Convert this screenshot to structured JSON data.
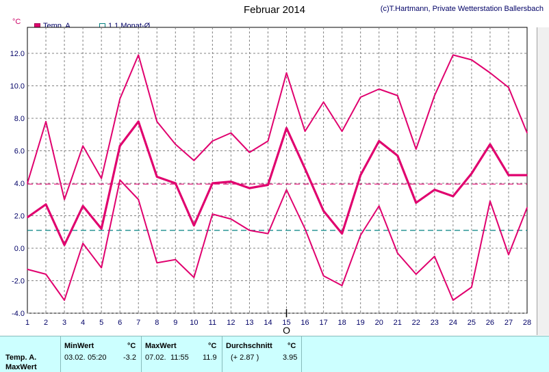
{
  "title": "Februar 2014",
  "credit": "(c)T.Hartmann, Private Wetterstation Ballersbach",
  "unit": "°C",
  "legend": {
    "temp": "Temp. A.",
    "avg": "1.1 Monat-Ø"
  },
  "cursor_label": "O",
  "colors": {
    "series": "#e0006e",
    "monthly_avg": "#008080",
    "grid": "#808080"
  },
  "chart_data": {
    "type": "line",
    "x": [
      1,
      2,
      3,
      4,
      5,
      6,
      7,
      8,
      9,
      10,
      11,
      12,
      13,
      14,
      15,
      16,
      17,
      18,
      19,
      20,
      21,
      22,
      23,
      24,
      25,
      26,
      27,
      28
    ],
    "xlim": [
      1,
      28
    ],
    "ylim": [
      -4.0,
      13.6
    ],
    "yticks": [
      "-4.0",
      "-2.0",
      "0.0",
      "2.0",
      "4.0",
      "6.0",
      "8.0",
      "10.0",
      "12.0"
    ],
    "ytick_values": [
      -4,
      -2,
      0,
      2,
      4,
      6,
      8,
      10,
      12
    ],
    "grid": true,
    "series": [
      {
        "name": "Temp. A.",
        "role": "max",
        "values": [
          4.0,
          7.8,
          3.0,
          6.3,
          4.3,
          9.2,
          11.9,
          7.8,
          6.4,
          5.4,
          6.6,
          7.1,
          5.9,
          6.6,
          10.8,
          7.2,
          9.0,
          7.2,
          9.3,
          9.8,
          9.4,
          6.1,
          9.4,
          11.9,
          11.6,
          10.8,
          9.9,
          7.1
        ]
      },
      {
        "name": "Temp. A.",
        "role": "mean",
        "values": [
          1.9,
          2.7,
          0.2,
          2.6,
          1.2,
          6.3,
          7.8,
          4.4,
          4.0,
          1.4,
          4.0,
          4.1,
          3.7,
          3.9,
          7.4,
          4.9,
          2.3,
          0.9,
          4.5,
          6.6,
          5.7,
          2.8,
          3.6,
          3.2,
          4.6,
          6.4,
          4.5,
          4.5
        ]
      },
      {
        "name": "Temp. A.",
        "role": "min",
        "values": [
          -1.3,
          -1.6,
          -3.2,
          0.3,
          -1.2,
          4.2,
          3.0,
          -0.9,
          -0.7,
          -1.8,
          2.1,
          1.8,
          1.1,
          0.9,
          3.6,
          1.2,
          -1.7,
          -2.3,
          0.8,
          2.6,
          -0.3,
          -1.6,
          -0.5,
          -3.2,
          -2.4,
          2.9,
          -0.4,
          2.5
        ]
      }
    ],
    "reference_lines": [
      {
        "name": "Temp. A.",
        "value": 3.95
      },
      {
        "name": "1.1 Monat-Ø",
        "value": 1.1
      }
    ]
  },
  "table": {
    "row1": "Temp. A.",
    "row2": "MaxWert",
    "min_header": "MinWert",
    "unit": "°C",
    "min_date": "03.02.",
    "min_time": "05:20",
    "min_value": "-3.2",
    "max_header": "MaxWert",
    "max_date": "07.02.",
    "max_time": "11:55",
    "max_value": "11.9",
    "avg_header": "Durchschnitt",
    "avg_diff": "(+ 2.87 )",
    "avg_value": "3.95"
  }
}
